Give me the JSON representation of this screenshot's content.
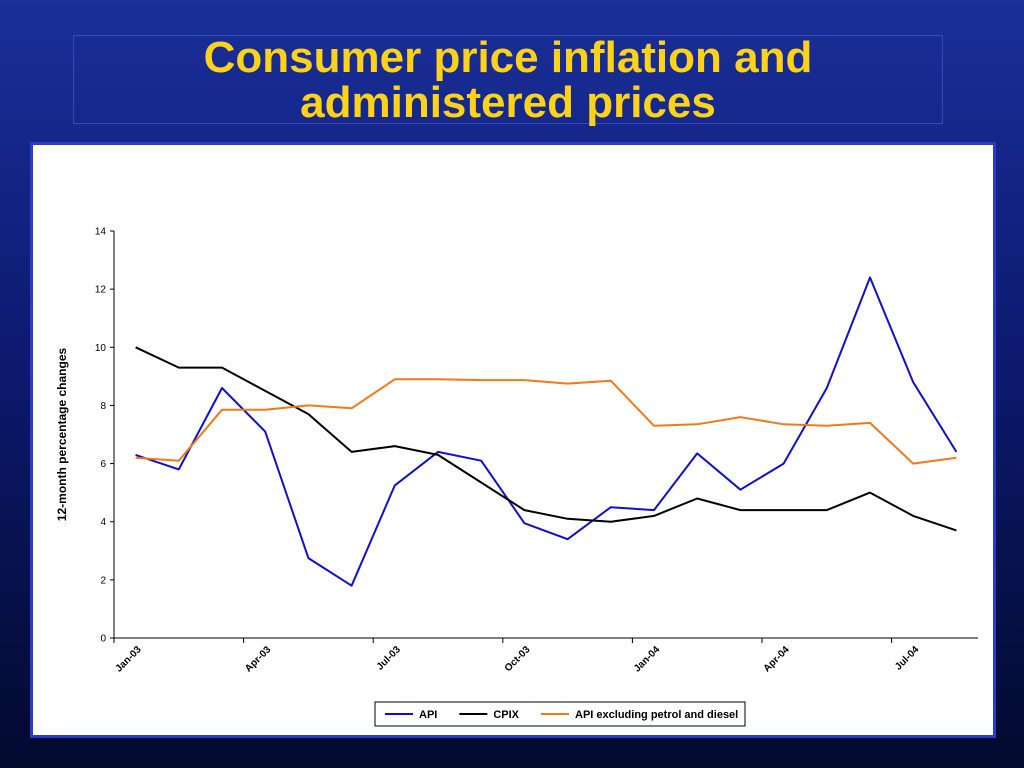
{
  "slide": {
    "title": "Consumer price inflation and\nadministered prices"
  },
  "chart_data": {
    "type": "line",
    "title": "",
    "xlabel": "",
    "ylabel": "12-month percentage changes",
    "ylim": [
      0,
      14
    ],
    "yticks": [
      0,
      2,
      4,
      6,
      8,
      10,
      12,
      14
    ],
    "x": [
      "Jan-03",
      "Feb-03",
      "Mar-03",
      "Apr-03",
      "May-03",
      "Jun-03",
      "Jul-03",
      "Aug-03",
      "Sep-03",
      "Oct-03",
      "Nov-03",
      "Dec-03",
      "Jan-04",
      "Feb-04",
      "Mar-04",
      "Apr-04",
      "May-04",
      "Jun-04",
      "Jul-04",
      "Aug-04"
    ],
    "xtick_labels": [
      "Jan-03",
      "Apr-03",
      "Jul-03",
      "Oct-03",
      "Jan-04",
      "Apr-04",
      "Jul-04"
    ],
    "grid": false,
    "legend_position": "bottom",
    "series": [
      {
        "name": "API",
        "color": "#1010cc",
        "values": [
          6.3,
          5.8,
          8.6,
          7.1,
          2.75,
          1.8,
          5.25,
          6.4,
          6.1,
          3.95,
          3.4,
          4.5,
          4.4,
          6.35,
          5.1,
          6.0,
          8.6,
          12.4,
          8.8,
          6.4
        ]
      },
      {
        "name": "CPIX",
        "color": "#000000",
        "values": [
          10.0,
          9.3,
          9.3,
          8.5,
          7.7,
          6.4,
          6.6,
          6.3,
          5.35,
          4.4,
          4.1,
          4.0,
          4.2,
          4.8,
          4.4,
          4.4,
          4.4,
          5.0,
          4.2,
          3.7
        ]
      },
      {
        "name": "API excluding petrol and diesel",
        "color": "#f07a1a",
        "values": [
          6.2,
          6.1,
          7.85,
          7.85,
          8.0,
          7.9,
          8.9,
          8.9,
          8.87,
          8.87,
          8.75,
          8.85,
          7.3,
          7.35,
          7.6,
          7.35,
          7.3,
          7.4,
          6.0,
          6.2
        ]
      }
    ]
  }
}
